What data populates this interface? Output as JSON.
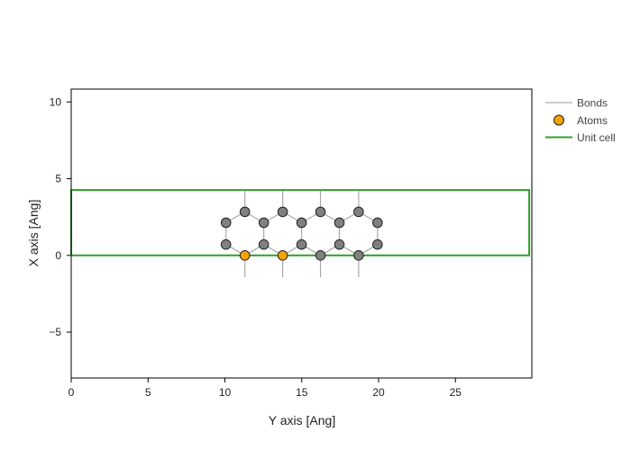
{
  "chart_data": {
    "type": "scatter",
    "title": "",
    "xlabel": "Y axis [Ang]",
    "ylabel": "X axis [Ang]",
    "xlim": [
      0,
      29.8
    ],
    "ylim": [
      -8,
      10.8
    ],
    "xticks": [
      0,
      5,
      10,
      15,
      20,
      25
    ],
    "yticks": [
      10,
      5,
      0,
      -5
    ],
    "ytick_labels": [
      "10",
      "5",
      "0",
      "−5"
    ],
    "grid": false,
    "legend": {
      "position": "right-outside",
      "entries": [
        {
          "label": "Bonds",
          "type": "line",
          "color": "#999999"
        },
        {
          "label": "Atoms",
          "type": "marker",
          "color": "#f5a300"
        },
        {
          "label": "Unit cell",
          "type": "line",
          "color": "#2ca02c"
        }
      ]
    },
    "unit_cell": {
      "x": [
        0,
        29.8,
        29.8,
        0,
        0
      ],
      "y": [
        0,
        0,
        4.26,
        4.26,
        0
      ],
      "color": "#2ca02c"
    },
    "atoms": [
      {
        "x": 11.3,
        "y": 2.84,
        "color": "#808080"
      },
      {
        "x": 13.76,
        "y": 2.84,
        "color": "#808080"
      },
      {
        "x": 16.22,
        "y": 2.84,
        "color": "#808080"
      },
      {
        "x": 18.7,
        "y": 2.84,
        "color": "#808080"
      },
      {
        "x": 10.07,
        "y": 2.13,
        "color": "#808080"
      },
      {
        "x": 12.53,
        "y": 2.13,
        "color": "#808080"
      },
      {
        "x": 14.99,
        "y": 2.13,
        "color": "#808080"
      },
      {
        "x": 17.45,
        "y": 2.13,
        "color": "#808080"
      },
      {
        "x": 19.93,
        "y": 2.13,
        "color": "#808080"
      },
      {
        "x": 10.07,
        "y": 0.71,
        "color": "#808080"
      },
      {
        "x": 12.53,
        "y": 0.71,
        "color": "#808080"
      },
      {
        "x": 14.99,
        "y": 0.71,
        "color": "#808080"
      },
      {
        "x": 17.45,
        "y": 0.71,
        "color": "#808080"
      },
      {
        "x": 19.93,
        "y": 0.71,
        "color": "#808080"
      },
      {
        "x": 11.3,
        "y": 0.0,
        "color": "#f5a300"
      },
      {
        "x": 13.76,
        "y": 0.0,
        "color": "#f5a300"
      },
      {
        "x": 16.22,
        "y": 0.0,
        "color": "#808080"
      },
      {
        "x": 18.7,
        "y": 0.0,
        "color": "#808080"
      }
    ],
    "bonds_color": "#aaaaaa"
  },
  "legend_labels": {
    "bonds": "Bonds",
    "atoms": "Atoms",
    "unit_cell": "Unit cell"
  },
  "axes": {
    "xlabel": "Y axis [Ang]",
    "ylabel": "X axis [Ang]"
  }
}
